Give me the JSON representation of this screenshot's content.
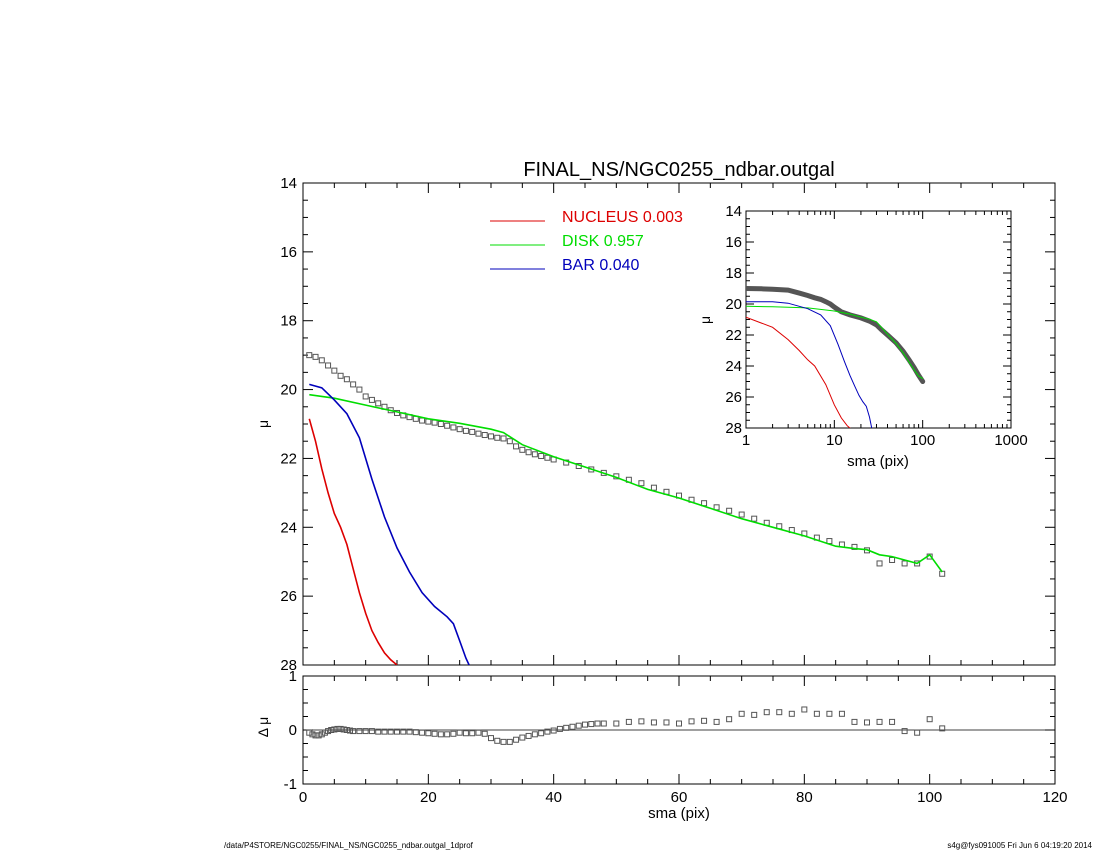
{
  "chart_data": [
    {
      "panel": "main",
      "type": "line",
      "title": "FINAL_NS/NGC0255_ndbar.outgal",
      "xlabel": "",
      "ylabel": "μ",
      "xlim": [
        0,
        120
      ],
      "ylim": [
        28,
        14
      ],
      "y_inverted": true,
      "xticks": [
        0,
        20,
        40,
        60,
        80,
        100,
        120
      ],
      "yticks": [
        14,
        16,
        18,
        20,
        22,
        24,
        26,
        28
      ],
      "legend_position": "top-center",
      "legend": [
        {
          "label": "NUCLEUS",
          "value": "0.003",
          "color": "#dd0000"
        },
        {
          "label": "DISK",
          "value": "0.957",
          "color": "#00dd00"
        },
        {
          "label": "BAR",
          "value": "0.040",
          "color": "#0000bb"
        }
      ],
      "series": [
        {
          "name": "data",
          "style": "squares",
          "color": "#555555",
          "x": [
            1,
            2,
            3,
            4,
            5,
            6,
            7,
            8,
            9,
            10,
            11,
            12,
            13,
            14,
            15,
            16,
            17,
            18,
            19,
            20,
            21,
            22,
            23,
            24,
            25,
            26,
            27,
            28,
            29,
            30,
            31,
            32,
            33,
            34,
            35,
            36,
            37,
            38,
            39,
            40,
            42,
            44,
            46,
            48,
            50,
            52,
            54,
            56,
            58,
            60,
            62,
            64,
            66,
            68,
            70,
            72,
            74,
            76,
            78,
            80,
            82,
            84,
            86,
            88,
            90,
            92,
            94,
            96,
            98,
            100,
            102
          ],
          "y": [
            19.0,
            19.05,
            19.15,
            19.3,
            19.45,
            19.6,
            19.7,
            19.85,
            20.0,
            20.2,
            20.3,
            20.4,
            20.5,
            20.6,
            20.68,
            20.75,
            20.8,
            20.85,
            20.9,
            20.93,
            20.96,
            21.0,
            21.05,
            21.1,
            21.15,
            21.2,
            21.23,
            21.28,
            21.32,
            21.36,
            21.4,
            21.42,
            21.5,
            21.65,
            21.75,
            21.82,
            21.88,
            21.93,
            21.98,
            22.03,
            22.12,
            22.22,
            22.32,
            22.42,
            22.52,
            22.62,
            22.72,
            22.85,
            22.97,
            23.08,
            23.2,
            23.3,
            23.42,
            23.52,
            23.63,
            23.75,
            23.87,
            23.97,
            24.08,
            24.18,
            24.3,
            24.4,
            24.5,
            24.57,
            24.67,
            25.05,
            24.95,
            25.05,
            25.05,
            24.85,
            25.35
          ]
        },
        {
          "name": "NUCLEUS",
          "color": "#dd0000",
          "x": [
            1,
            2,
            3,
            4,
            5,
            6,
            7,
            8,
            9,
            10,
            11,
            12,
            13,
            14,
            15
          ],
          "y": [
            20.85,
            21.5,
            22.3,
            23.0,
            23.6,
            24.0,
            24.5,
            25.2,
            25.9,
            26.5,
            27.0,
            27.35,
            27.65,
            27.85,
            28.0
          ]
        },
        {
          "name": "DISK",
          "color": "#00dd00",
          "x": [
            1,
            5,
            10,
            15,
            20,
            25,
            30,
            32,
            35,
            40,
            45,
            50,
            55,
            60,
            65,
            70,
            75,
            80,
            85,
            88,
            90,
            92,
            94,
            96,
            98,
            100,
            102
          ],
          "y": [
            20.15,
            20.25,
            20.45,
            20.65,
            20.85,
            20.98,
            21.15,
            21.25,
            21.6,
            21.95,
            22.25,
            22.55,
            22.9,
            23.15,
            23.45,
            23.75,
            24.0,
            24.25,
            24.55,
            24.62,
            24.65,
            24.8,
            24.85,
            24.95,
            25.05,
            24.8,
            25.3
          ]
        },
        {
          "name": "BAR",
          "color": "#0000bb",
          "x": [
            1,
            3,
            5,
            7,
            9,
            11,
            13,
            15,
            17,
            19,
            21,
            23,
            24,
            25,
            26,
            26.5
          ],
          "y": [
            19.85,
            19.95,
            20.3,
            20.7,
            21.4,
            22.6,
            23.7,
            24.6,
            25.3,
            25.9,
            26.3,
            26.6,
            26.8,
            27.3,
            27.8,
            28.0
          ]
        }
      ]
    },
    {
      "panel": "inset",
      "type": "line",
      "x_scale": "log",
      "xlabel": "sma (pix)",
      "ylabel": "μ",
      "xlim": [
        1,
        1000
      ],
      "ylim": [
        28,
        14
      ],
      "xticks": [
        1,
        10,
        100,
        1000
      ],
      "xtick_labels": [
        "1",
        "10",
        "100",
        "1000"
      ],
      "yticks": [
        14,
        16,
        18,
        20,
        22,
        24,
        26,
        28
      ],
      "series": [
        {
          "name": "data",
          "color": "#555555",
          "x": [
            1,
            1.5,
            2,
            3,
            4,
            5,
            6,
            7,
            8,
            9,
            10,
            12,
            15,
            20,
            25,
            30,
            34,
            40,
            50,
            60,
            70,
            80,
            90,
            100
          ],
          "y": [
            19.0,
            19.02,
            19.05,
            19.1,
            19.3,
            19.45,
            19.6,
            19.7,
            19.85,
            20.0,
            20.2,
            20.5,
            20.7,
            20.9,
            21.1,
            21.35,
            21.65,
            22.0,
            22.5,
            23.05,
            23.6,
            24.1,
            24.6,
            25.0
          ]
        },
        {
          "name": "NUCLEUS",
          "color": "#dd0000",
          "x": [
            1,
            2,
            3,
            4,
            5,
            6,
            8,
            10,
            12,
            14,
            15,
            16
          ],
          "y": [
            20.85,
            21.5,
            22.3,
            23.0,
            23.6,
            24.0,
            25.2,
            26.5,
            27.35,
            27.85,
            28.0,
            28.2
          ]
        },
        {
          "name": "DISK",
          "color": "#00dd00",
          "x": [
            1,
            2,
            5,
            10,
            15,
            20,
            25,
            30,
            40,
            50,
            60,
            70,
            80,
            90,
            100
          ],
          "y": [
            20.15,
            20.18,
            20.25,
            20.45,
            20.65,
            20.85,
            20.98,
            21.15,
            21.95,
            22.55,
            23.15,
            23.75,
            24.25,
            24.65,
            24.8
          ]
        },
        {
          "name": "BAR",
          "color": "#0000bb",
          "x": [
            1,
            2,
            3,
            5,
            7,
            9,
            11,
            13,
            15,
            17,
            19,
            21,
            23,
            25,
            26.5
          ],
          "y": [
            19.85,
            19.85,
            19.95,
            20.3,
            20.7,
            21.4,
            22.6,
            23.7,
            24.6,
            25.3,
            25.9,
            26.3,
            26.6,
            27.3,
            28.0
          ]
        }
      ]
    },
    {
      "panel": "residual",
      "type": "scatter",
      "xlabel": "sma (pix)",
      "ylabel": "Δ μ",
      "xlim": [
        0,
        120
      ],
      "ylim": [
        -1,
        1
      ],
      "xticks": [
        0,
        20,
        40,
        60,
        80,
        100,
        120
      ],
      "yticks": [
        -1,
        0,
        1
      ],
      "reference_line": 0,
      "series": [
        {
          "name": "residual",
          "style": "squares",
          "color": "#555555",
          "x": [
            1,
            1.5,
            2,
            2.5,
            3,
            3.5,
            4,
            4.5,
            5,
            5.5,
            6,
            6.5,
            7,
            7.5,
            8,
            9,
            10,
            11,
            12,
            13,
            14,
            15,
            16,
            17,
            18,
            19,
            20,
            21,
            22,
            23,
            24,
            25,
            26,
            27,
            28,
            29,
            30,
            31,
            32,
            33,
            34,
            35,
            36,
            37,
            38,
            39,
            40,
            41,
            42,
            43,
            44,
            45,
            46,
            47,
            48,
            50,
            52,
            54,
            56,
            58,
            60,
            62,
            64,
            66,
            68,
            70,
            72,
            74,
            76,
            78,
            80,
            82,
            84,
            86,
            88,
            90,
            92,
            94,
            96,
            98,
            100,
            102
          ],
          "y": [
            -0.05,
            -0.08,
            -0.1,
            -0.1,
            -0.08,
            -0.05,
            -0.02,
            0.0,
            0.01,
            0.02,
            0.02,
            0.01,
            0.0,
            -0.01,
            -0.02,
            -0.02,
            -0.02,
            -0.02,
            -0.03,
            -0.03,
            -0.03,
            -0.03,
            -0.03,
            -0.03,
            -0.04,
            -0.05,
            -0.06,
            -0.07,
            -0.08,
            -0.08,
            -0.07,
            -0.05,
            -0.06,
            -0.06,
            -0.05,
            -0.07,
            -0.15,
            -0.2,
            -0.22,
            -0.22,
            -0.18,
            -0.14,
            -0.11,
            -0.08,
            -0.06,
            -0.03,
            -0.01,
            0.02,
            0.04,
            0.06,
            0.08,
            0.1,
            0.11,
            0.12,
            0.12,
            0.12,
            0.15,
            0.16,
            0.14,
            0.14,
            0.12,
            0.16,
            0.17,
            0.15,
            0.2,
            0.3,
            0.28,
            0.33,
            0.33,
            0.3,
            0.38,
            0.3,
            0.3,
            0.3,
            0.15,
            0.14,
            0.15,
            0.15,
            -0.02,
            -0.05,
            0.2,
            0.03
          ]
        }
      ]
    }
  ],
  "footer": {
    "left": "/data/P4STORE/NGC0255/FINAL_NS/NGC0255_ndbar.outgal_1dprof",
    "right": "s4g@fys091005  Fri Jun  6 04:19:20 2014"
  }
}
